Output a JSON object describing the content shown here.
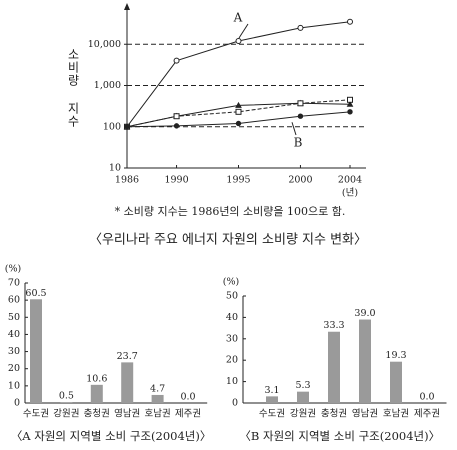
{
  "chart_data": [
    {
      "type": "line",
      "title": "〈우리나라 주요 에너지 자원의 소비량 지수 변화〉",
      "note": "* 소비량 지수는 1986년의 소비량을 100으로 함.",
      "y_label": "소비량 지수",
      "x_label": "(년)",
      "x": [
        1986,
        1990,
        1995,
        2000,
        2004
      ],
      "xlim": [
        1986,
        2004
      ],
      "xticks": [
        1986,
        1990,
        1995,
        2000,
        2004
      ],
      "log_y": true,
      "ylim": [
        10,
        100000
      ],
      "yticks": [
        10,
        100,
        {
          "value": 1000,
          "label": "1,000"
        },
        {
          "value": 10000,
          "label": "10,000"
        }
      ],
      "grid": true,
      "series": [
        {
          "name": "A",
          "color": "#222",
          "marker": "circle",
          "dashed": false,
          "values": [
            100,
            4000,
            12000,
            25000,
            35000
          ]
        },
        {
          "color": "#222",
          "marker": "triangle",
          "dashed": false,
          "values": [
            100,
            180,
            330,
            370,
            350
          ]
        },
        {
          "color": "#222",
          "marker": "square",
          "dashed": true,
          "values": [
            100,
            180,
            230,
            370,
            450
          ]
        },
        {
          "name": "B",
          "color": "#222",
          "marker": "dot",
          "dashed": false,
          "values": [
            100,
            105,
            120,
            180,
            230
          ]
        }
      ]
    },
    {
      "type": "bar",
      "title": "〈A 자원의 지역별 소비 구조(2004년)〉",
      "y_label": "(%)",
      "categories": [
        "수도권",
        "강원권",
        "충청권",
        "영남권",
        "호남권",
        "제주권"
      ],
      "values": [
        60.5,
        0.5,
        10.6,
        23.7,
        4.7,
        0
      ],
      "value_labels": [
        "60.5",
        "0.5",
        "10.6",
        "23.7",
        "4.7",
        "0.0"
      ],
      "color": "#9a9a9a",
      "ylim": [
        0,
        70
      ],
      "yticks": [
        0,
        10,
        20,
        30,
        40,
        50,
        60,
        70
      ]
    },
    {
      "type": "bar",
      "title": "〈B 자원의 지역별 소비 구조(2004년)〉",
      "y_label": "(%)",
      "categories": [
        "수도권",
        "강원권",
        "충청권",
        "영남권",
        "호남권",
        "제주권"
      ],
      "values": [
        3.1,
        5.3,
        33.3,
        39,
        19.3,
        0
      ],
      "value_labels": [
        "3.1",
        "5.3",
        "33.3",
        "39.0",
        "19.3",
        "0.0"
      ],
      "color": "#9a9a9a",
      "ylim": [
        0,
        50
      ],
      "yticks": [
        0,
        10,
        20,
        30,
        40,
        50
      ]
    }
  ]
}
